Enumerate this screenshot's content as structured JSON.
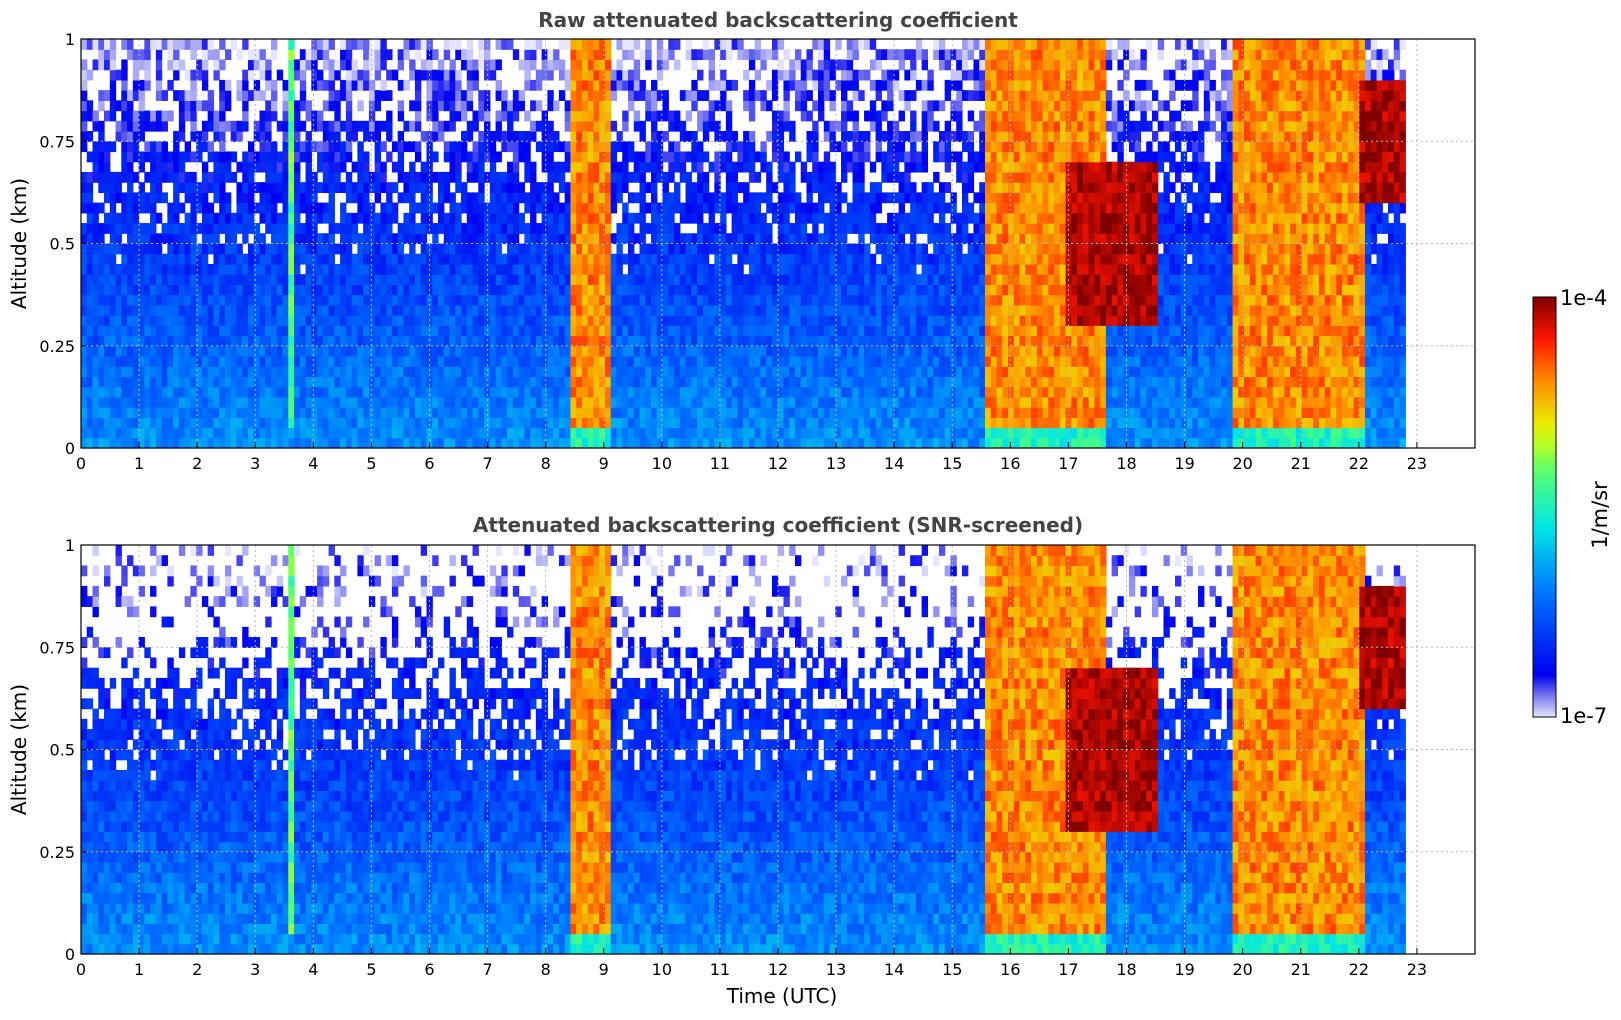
{
  "figure": {
    "xlabel": "Time (UTC)",
    "colorbar": {
      "label": "1/m/sr",
      "max_label": "1e-4",
      "min_label": "1e-7",
      "scale": "log",
      "colormap": "jet",
      "min_color": "#e6e6ff",
      "max_color": "#800000"
    }
  },
  "chart_data": [
    {
      "type": "heatmap",
      "title": "Raw attenuated backscattering coefficient",
      "xlabel": "",
      "ylabel": "Altitude (km)",
      "xlim": [
        0,
        24
      ],
      "ylim": [
        0,
        1
      ],
      "x_ticks": [
        "0",
        "1",
        "2",
        "3",
        "4",
        "5",
        "6",
        "7",
        "8",
        "9",
        "10",
        "11",
        "12",
        "13",
        "14",
        "15",
        "16",
        "17",
        "18",
        "19",
        "20",
        "21",
        "22",
        "23"
      ],
      "y_ticks": [
        "0",
        "0.25",
        "0.5",
        "0.75",
        "1"
      ],
      "grid": true,
      "data_end_utc": 22.8,
      "zlim": [
        1e-07,
        0.0001
      ],
      "zscale": "log",
      "cloud_events": [
        {
          "start_utc": 3.55,
          "end_utc": 3.7,
          "intensity": "medium"
        },
        {
          "start_utc": 8.45,
          "end_utc": 9.1,
          "intensity": "high"
        },
        {
          "start_utc": 15.6,
          "end_utc": 17.6,
          "intensity": "high"
        },
        {
          "start_utc": 17.0,
          "end_utc": 18.5,
          "intensity": "very high",
          "altitude_km": [
            0.3,
            0.7
          ]
        },
        {
          "start_utc": 19.8,
          "end_utc": 22.1,
          "intensity": "high"
        },
        {
          "start_utc": 22.0,
          "end_utc": 22.8,
          "intensity": "very high",
          "altitude_km": [
            0.6,
            0.9
          ]
        }
      ]
    },
    {
      "type": "heatmap",
      "title": "Attenuated backscattering coefficient (SNR-screened)",
      "xlabel": "Time (UTC)",
      "ylabel": "Altitude (km)",
      "xlim": [
        0,
        24
      ],
      "ylim": [
        0,
        1
      ],
      "x_ticks": [
        "0",
        "1",
        "2",
        "3",
        "4",
        "5",
        "6",
        "7",
        "8",
        "9",
        "10",
        "11",
        "12",
        "13",
        "14",
        "15",
        "16",
        "17",
        "18",
        "19",
        "20",
        "21",
        "22",
        "23"
      ],
      "y_ticks": [
        "0",
        "0.25",
        "0.5",
        "0.75",
        "1"
      ],
      "grid": true,
      "data_end_utc": 22.8,
      "zlim": [
        1e-07,
        0.0001
      ],
      "zscale": "log",
      "cloud_events": [
        {
          "start_utc": 3.55,
          "end_utc": 3.7,
          "intensity": "medium"
        },
        {
          "start_utc": 8.45,
          "end_utc": 9.1,
          "intensity": "high"
        },
        {
          "start_utc": 15.6,
          "end_utc": 17.6,
          "intensity": "high"
        },
        {
          "start_utc": 17.0,
          "end_utc": 18.5,
          "intensity": "very high",
          "altitude_km": [
            0.3,
            0.7
          ]
        },
        {
          "start_utc": 19.8,
          "end_utc": 22.1,
          "intensity": "high"
        },
        {
          "start_utc": 22.0,
          "end_utc": 22.8,
          "intensity": "very high",
          "altitude_km": [
            0.6,
            0.9
          ]
        }
      ]
    }
  ]
}
